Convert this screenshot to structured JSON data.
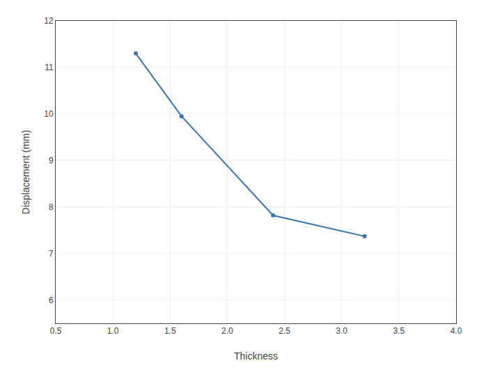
{
  "chart_data": {
    "type": "line",
    "x": [
      1.2,
      1.6,
      2.4,
      3.2
    ],
    "series": [
      {
        "values": [
          11.3,
          9.95,
          7.82,
          7.37
        ],
        "color": "#3a76ae",
        "marker": "circle",
        "line_style": "solid"
      }
    ],
    "xlabel": "Thickness",
    "ylabel": "Displacement (mm)",
    "xlim": [
      0.5,
      4.0
    ],
    "ylim": [
      5.5,
      12.0
    ],
    "xticks": [
      0.5,
      {
        "value": 1.0,
        "label": "1.0"
      },
      1.5,
      {
        "value": 2.0,
        "label": "2.0"
      },
      2.5,
      {
        "value": 3.0,
        "label": "3.0"
      },
      3.5,
      {
        "value": 4.0,
        "label": "4.0"
      }
    ],
    "yticks": [
      6,
      7,
      8,
      9,
      10,
      11,
      12
    ],
    "grid": true
  }
}
